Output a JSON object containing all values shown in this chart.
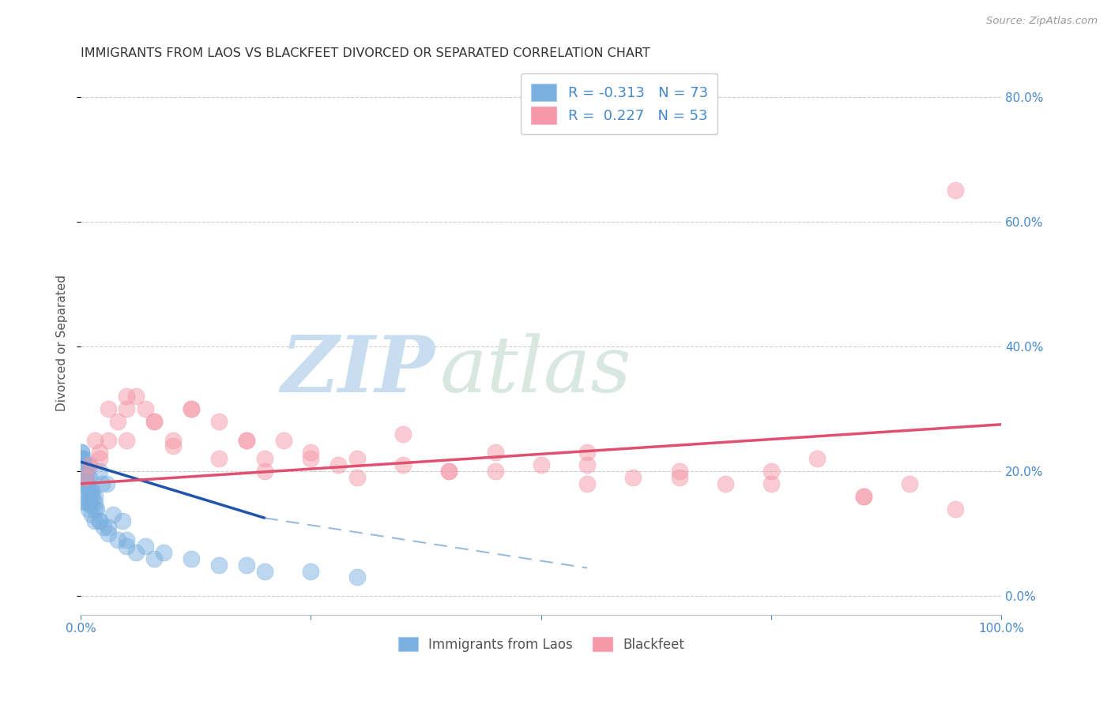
{
  "title": "IMMIGRANTS FROM LAOS VS BLACKFEET DIVORCED OR SEPARATED CORRELATION CHART",
  "source": "Source: ZipAtlas.com",
  "ylabel": "Divorced or Separated",
  "label_blue": "Immigrants from Laos",
  "label_pink": "Blackfeet",
  "legend_blue_r": "-0.313",
  "legend_blue_n": "73",
  "legend_pink_r": "0.227",
  "legend_pink_n": "53",
  "blue_x": [
    0.1,
    0.15,
    0.2,
    0.25,
    0.3,
    0.35,
    0.4,
    0.5,
    0.6,
    0.7,
    0.8,
    0.9,
    1.0,
    1.1,
    1.2,
    1.3,
    1.5,
    1.7,
    2.0,
    2.3,
    2.8,
    3.5,
    4.5,
    0.05,
    0.1,
    0.15,
    0.2,
    0.25,
    0.3,
    0.4,
    0.5,
    0.6,
    0.7,
    0.8,
    1.0,
    1.2,
    1.5,
    2.0,
    2.5,
    3.0,
    4.0,
    5.0,
    6.0,
    8.0,
    0.05,
    0.1,
    0.2,
    0.3,
    0.4,
    0.5,
    0.6,
    0.8,
    1.0,
    1.5,
    2.0,
    3.0,
    5.0,
    7.0,
    9.0,
    12.0,
    15.0,
    18.0,
    20.0,
    25.0,
    30.0,
    0.05,
    0.1,
    0.2,
    0.3,
    0.5,
    0.7,
    1.0,
    1.5
  ],
  "blue_y": [
    22,
    21,
    20,
    21,
    22,
    20,
    21,
    20,
    19,
    20,
    21,
    19,
    17,
    16,
    17,
    16,
    15,
    14,
    20,
    18,
    18,
    13,
    12,
    22,
    21,
    20,
    20,
    19,
    18,
    17,
    16,
    15,
    15,
    14,
    15,
    13,
    12,
    12,
    11,
    10,
    9,
    8,
    7,
    6,
    23,
    22,
    21,
    20,
    20,
    19,
    18,
    17,
    15,
    14,
    12,
    11,
    9,
    8,
    7,
    6,
    5,
    5,
    4,
    4,
    3,
    23,
    22,
    21,
    20,
    19,
    18,
    17,
    16
  ],
  "pink_x": [
    0.5,
    1.0,
    2.0,
    3.0,
    4.0,
    5.0,
    6.0,
    7.0,
    8.0,
    10.0,
    12.0,
    15.0,
    18.0,
    20.0,
    22.0,
    25.0,
    28.0,
    30.0,
    35.0,
    40.0,
    45.0,
    50.0,
    55.0,
    60.0,
    65.0,
    70.0,
    75.0,
    80.0,
    85.0,
    90.0,
    95.0,
    1.5,
    3.0,
    5.0,
    8.0,
    12.0,
    18.0,
    25.0,
    35.0,
    45.0,
    55.0,
    65.0,
    75.0,
    85.0,
    2.0,
    5.0,
    10.0,
    15.0,
    20.0,
    30.0,
    40.0,
    55.0,
    95.0
  ],
  "pink_y": [
    19,
    21,
    23,
    25,
    28,
    30,
    32,
    30,
    28,
    25,
    30,
    28,
    25,
    22,
    25,
    23,
    21,
    19,
    21,
    20,
    20,
    21,
    23,
    19,
    20,
    18,
    20,
    22,
    16,
    18,
    65,
    25,
    30,
    32,
    28,
    30,
    25,
    22,
    26,
    23,
    21,
    19,
    18,
    16,
    22,
    25,
    24,
    22,
    20,
    22,
    20,
    18,
    14
  ],
  "blue_line_x1": 0.0,
  "blue_line_x2": 20.0,
  "blue_line_y1": 21.5,
  "blue_line_y2": 12.5,
  "blue_dash_x1": 20.0,
  "blue_dash_x2": 55.0,
  "blue_dash_y1": 12.5,
  "blue_dash_y2": 4.5,
  "pink_line_x1": 0.0,
  "pink_line_x2": 100.0,
  "pink_line_y1": 18.0,
  "pink_line_y2": 27.5,
  "xmin": 0.0,
  "xmax": 100.0,
  "ymin": -3.0,
  "ymax": 84.0,
  "bg_color": "#ffffff",
  "blue_scatter_color": "#7ab0e0",
  "pink_scatter_color": "#f598a8",
  "blue_line_color": "#2255aa",
  "pink_line_color": "#e05070",
  "blue_dash_color": "#99bbdd",
  "grid_color": "#cccccc",
  "title_color": "#333333",
  "right_axis_color": "#4488cc",
  "label_color": "#555555",
  "watermark_zip_color": "#c8ddf0",
  "watermark_atlas_color": "#d8e8e0"
}
